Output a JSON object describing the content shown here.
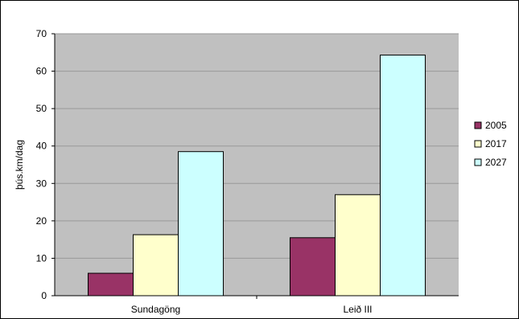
{
  "chart_data": {
    "type": "bar",
    "title": "",
    "xlabel": "",
    "ylabel": "þús.km/dag",
    "categories": [
      "Sundagöng",
      "Leið III"
    ],
    "series": [
      {
        "name": "2005",
        "values": [
          6,
          15.5
        ],
        "color": "#993366"
      },
      {
        "name": "2017",
        "values": [
          16.3,
          27
        ],
        "color": "#ffffcc"
      },
      {
        "name": "2027",
        "values": [
          38.5,
          64.3
        ],
        "color": "#ccffff"
      }
    ],
    "ylim": [
      0,
      70
    ],
    "yticks": [
      0,
      10,
      20,
      30,
      40,
      50,
      60,
      70
    ],
    "grid": true,
    "plot_background": "#c0c0c0",
    "gridline_color": "#999999",
    "bar_outline_color": "#000000",
    "legend_placement": "right"
  }
}
